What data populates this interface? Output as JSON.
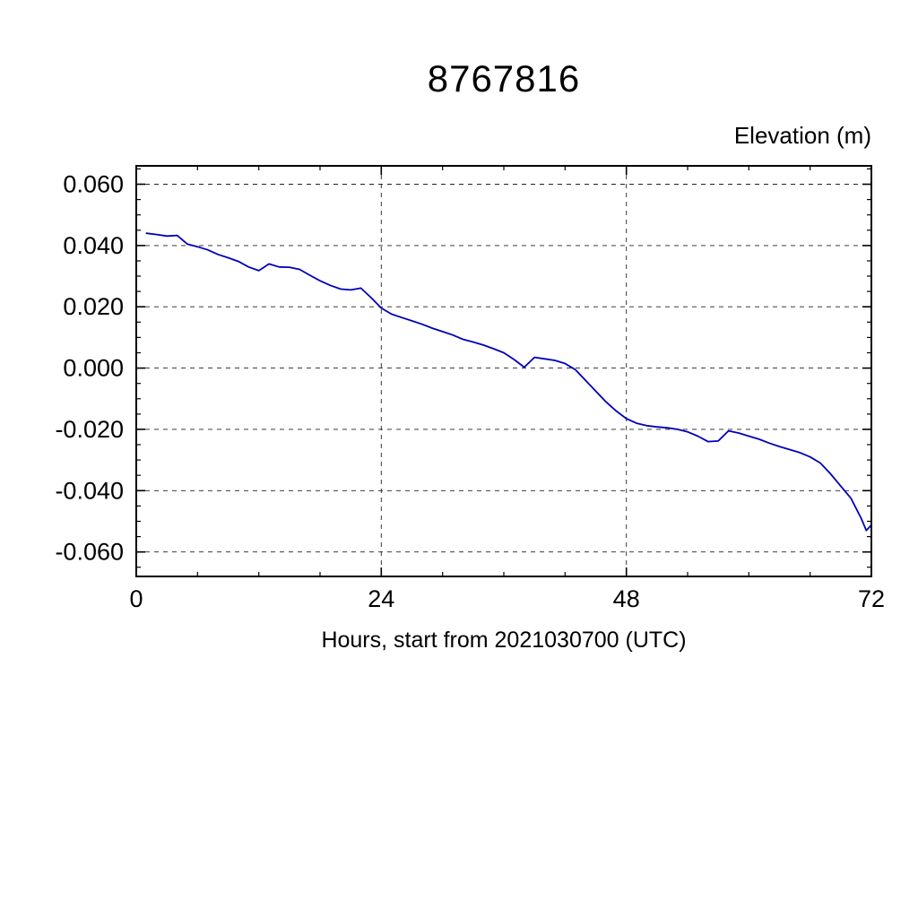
{
  "chart_data": {
    "type": "line",
    "title": "8767816",
    "ylabel": "Elevation (m)",
    "xlabel": "Hours, start from 2021030700 (UTC)",
    "line_color": "#0000bb",
    "grid": true,
    "legend": "none",
    "xlim": [
      0,
      72
    ],
    "ylim": [
      -0.068,
      0.066
    ],
    "xticks": [
      0,
      24,
      48,
      72
    ],
    "xtick_labels": [
      "0",
      "24",
      "48",
      "72"
    ],
    "x_minor_interval": 6,
    "yticks": [
      0.06,
      0.04,
      0.02,
      0,
      -0.02,
      -0.04,
      -0.06
    ],
    "ytick_labels": [
      "0.060",
      "0.040",
      "0.020",
      "0.000",
      "-0.020",
      "-0.040",
      "-0.060"
    ],
    "y_minor_interval": 0.005,
    "x": [
      1,
      2,
      3,
      4,
      5,
      6,
      7,
      8,
      9,
      10,
      11,
      12,
      13,
      14,
      15,
      16,
      17,
      18,
      19,
      20,
      21,
      22,
      23,
      24,
      25,
      26,
      27,
      28,
      29,
      30,
      31,
      32,
      33,
      34,
      35,
      36,
      37,
      38,
      39,
      40,
      41,
      42,
      43,
      44,
      45,
      46,
      47,
      48,
      49,
      50,
      51,
      52,
      53,
      54,
      55,
      56,
      57,
      58,
      59,
      60,
      61,
      62,
      63,
      64,
      65,
      66,
      67,
      68,
      69,
      70,
      71,
      71.5,
      72
    ],
    "y": [
      0.044,
      0.0436,
      0.0431,
      0.0433,
      0.0405,
      0.0396,
      0.0386,
      0.0371,
      0.036,
      0.0348,
      0.033,
      0.0318,
      0.034,
      0.033,
      0.0329,
      0.0322,
      0.0303,
      0.0285,
      0.027,
      0.0258,
      0.0255,
      0.0261,
      0.023,
      0.0196,
      0.0176,
      0.0165,
      0.0154,
      0.0143,
      0.013,
      0.0119,
      0.0108,
      0.0094,
      0.0085,
      0.0075,
      0.0063,
      0.005,
      0.0028,
      0.0003,
      0.0035,
      0.003,
      0.0025,
      0.0015,
      -0.0005,
      -0.004,
      -0.0075,
      -0.011,
      -0.014,
      -0.0165,
      -0.018,
      -0.0188,
      -0.0192,
      -0.0195,
      -0.02,
      -0.0208,
      -0.0222,
      -0.024,
      -0.0238,
      -0.0205,
      -0.0212,
      -0.0222,
      -0.0232,
      -0.0245,
      -0.0256,
      -0.0266,
      -0.0276,
      -0.029,
      -0.031,
      -0.0345,
      -0.0385,
      -0.0425,
      -0.049,
      -0.053,
      -0.0512
    ]
  }
}
